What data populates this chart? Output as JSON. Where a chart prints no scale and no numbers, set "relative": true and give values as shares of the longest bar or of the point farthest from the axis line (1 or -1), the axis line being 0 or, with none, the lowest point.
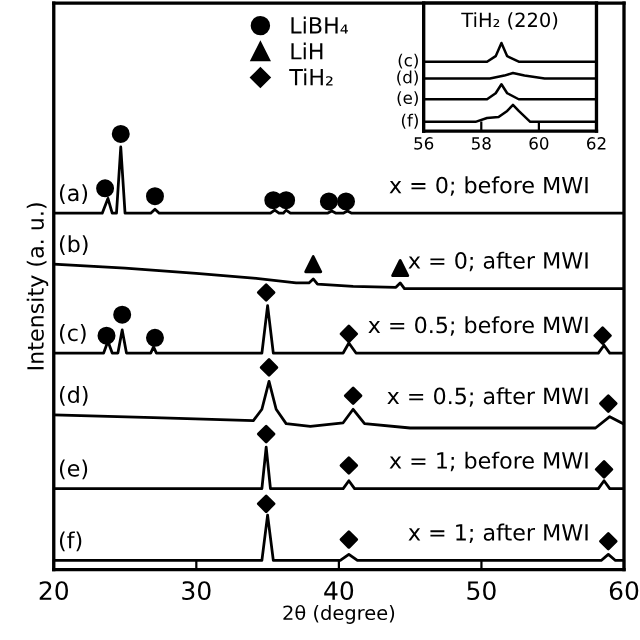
{
  "chart_data": [
    {
      "type": "line",
      "xlabel": "2θ (degree)",
      "ylabel": "Intensity (a. u.)",
      "relative": true,
      "xlim": [
        20,
        60
      ],
      "xticks": [
        20,
        30,
        40,
        50,
        60
      ],
      "tick_labels": "x",
      "legend": "top",
      "grid": false,
      "series": [
        {
          "name": "(a)",
          "color": "#000000",
          "x": [
            20,
            23.4,
            23.8,
            24.1,
            24.4,
            24.7,
            25.0,
            25.4,
            26.8,
            27.1,
            27.4,
            35.2,
            35.5,
            35.8,
            36.1,
            36.3,
            36.6,
            39.2,
            39.5,
            39.8,
            40.3,
            40.6,
            40.9,
            50,
            60
          ],
          "values": [
            0.818,
            0.818,
            0.852,
            0.818,
            0.818,
            0.97,
            0.818,
            0.818,
            0.818,
            0.827,
            0.818,
            0.818,
            0.825,
            0.818,
            0.818,
            0.825,
            0.818,
            0.818,
            0.823,
            0.818,
            0.818,
            0.823,
            0.818,
            0.818,
            0.818
          ]
        },
        {
          "name": "(b)",
          "color": "#000000",
          "x": [
            20,
            25,
            30,
            34,
            37,
            37.9,
            38.2,
            38.5,
            41,
            44.0,
            44.3,
            44.6,
            50,
            55,
            60
          ],
          "values": [
            0.701,
            0.692,
            0.68,
            0.669,
            0.658,
            0.658,
            0.667,
            0.655,
            0.65,
            0.648,
            0.658,
            0.645,
            0.645,
            0.645,
            0.645
          ]
        },
        {
          "name": "(c)",
          "color": "#000000",
          "x": [
            20,
            23.5,
            23.8,
            24.1,
            24.5,
            24.8,
            25.1,
            26.8,
            27.0,
            27.2,
            34.6,
            35.0,
            35.4,
            40.3,
            40.7,
            41.2,
            58.2,
            58.6,
            59.0,
            60
          ],
          "values": [
            0.497,
            0.497,
            0.524,
            0.497,
            0.497,
            0.55,
            0.497,
            0.497,
            0.511,
            0.497,
            0.497,
            0.606,
            0.497,
            0.497,
            0.52,
            0.497,
            0.497,
            0.515,
            0.497,
            0.497
          ]
        },
        {
          "name": "(d)",
          "color": "#000000",
          "x": [
            20,
            27,
            34,
            34.6,
            35.1,
            35.6,
            36.3,
            38,
            40.3,
            41.0,
            41.8,
            45,
            50,
            58,
            59.0,
            60
          ],
          "values": [
            0.355,
            0.349,
            0.342,
            0.368,
            0.432,
            0.368,
            0.335,
            0.329,
            0.337,
            0.368,
            0.335,
            0.325,
            0.325,
            0.325,
            0.351,
            0.334
          ]
        },
        {
          "name": "(e)",
          "color": "#000000",
          "x": [
            20,
            34.6,
            34.9,
            35.2,
            40.3,
            40.7,
            41.1,
            58.2,
            58.6,
            59.0,
            60
          ],
          "values": [
            0.186,
            0.186,
            0.281,
            0.186,
            0.186,
            0.204,
            0.186,
            0.186,
            0.204,
            0.186,
            0.186
          ]
        },
        {
          "name": "(f)",
          "color": "#000000",
          "x": [
            20,
            34.6,
            35.0,
            35.4,
            40.1,
            40.7,
            41.3,
            58.4,
            58.9,
            59.4,
            60
          ],
          "values": [
            0.021,
            0.021,
            0.125,
            0.021,
            0.021,
            0.035,
            0.021,
            0.021,
            0.035,
            0.021,
            0.021
          ]
        },
        {
          "name": "LiBH₄",
          "type": "scatter",
          "marker": "circle",
          "color": "#000000",
          "x": [
            23.6,
            24.7,
            27.1,
            35.4,
            36.3,
            39.3,
            40.5,
            23.7,
            24.8,
            27.1
          ],
          "values": [
            0.875,
            1.0,
            0.857,
            0.848,
            0.848,
            0.845,
            0.845,
            0.537,
            0.585,
            0.532
          ]
        },
        {
          "name": "LiH",
          "type": "scatter",
          "marker": "triangle",
          "color": "#000000",
          "x": [
            38.2,
            44.3
          ],
          "values": [
            0.701,
            0.692
          ]
        },
        {
          "name": "TiH₂",
          "type": "scatter",
          "marker": "diamond",
          "color": "#000000",
          "x": [
            34.9,
            40.7,
            58.5,
            35.1,
            41.0,
            58.9,
            34.9,
            40.7,
            58.6,
            34.9,
            40.7,
            58.9
          ],
          "values": [
            0.636,
            0.541,
            0.537,
            0.464,
            0.399,
            0.381,
            0.311,
            0.239,
            0.23,
            0.151,
            0.069,
            0.065
          ]
        }
      ],
      "annotations": [
        "x = 0; before MWI",
        "x = 0; after MWI",
        "x = 0.5; before MWI",
        "x = 0.5; after MWI",
        "x = 1; before MWI",
        "x = 1; after MWI"
      ]
    },
    {
      "type": "line",
      "title": "TiH₂ (220)",
      "relative": true,
      "xlim": [
        56,
        62
      ],
      "xticks": [
        56,
        58,
        60,
        62
      ],
      "tick_labels": "x",
      "series": [
        {
          "name": "(c)",
          "color": "#000000",
          "x": [
            56,
            58.2,
            58.5,
            58.7,
            58.9,
            59.3,
            62
          ],
          "values": [
            0.787,
            0.787,
            0.85,
            1.0,
            0.85,
            0.787,
            0.787
          ]
        },
        {
          "name": "(d)",
          "color": "#000000",
          "x": [
            56,
            58.3,
            58.8,
            59.1,
            59.5,
            60.2,
            62
          ],
          "values": [
            0.596,
            0.596,
            0.63,
            0.66,
            0.63,
            0.596,
            0.596
          ]
        },
        {
          "name": "(e)",
          "color": "#000000",
          "x": [
            56,
            58.2,
            58.5,
            58.7,
            58.9,
            59.3,
            62
          ],
          "values": [
            0.362,
            0.362,
            0.43,
            0.532,
            0.43,
            0.362,
            0.362
          ]
        },
        {
          "name": "(f)",
          "color": "#000000",
          "x": [
            56,
            57.8,
            58.2,
            58.6,
            58.9,
            59.1,
            59.3,
            59.7,
            62
          ],
          "values": [
            0.106,
            0.106,
            0.149,
            0.16,
            0.23,
            0.298,
            0.23,
            0.106,
            0.106
          ]
        }
      ]
    }
  ]
}
